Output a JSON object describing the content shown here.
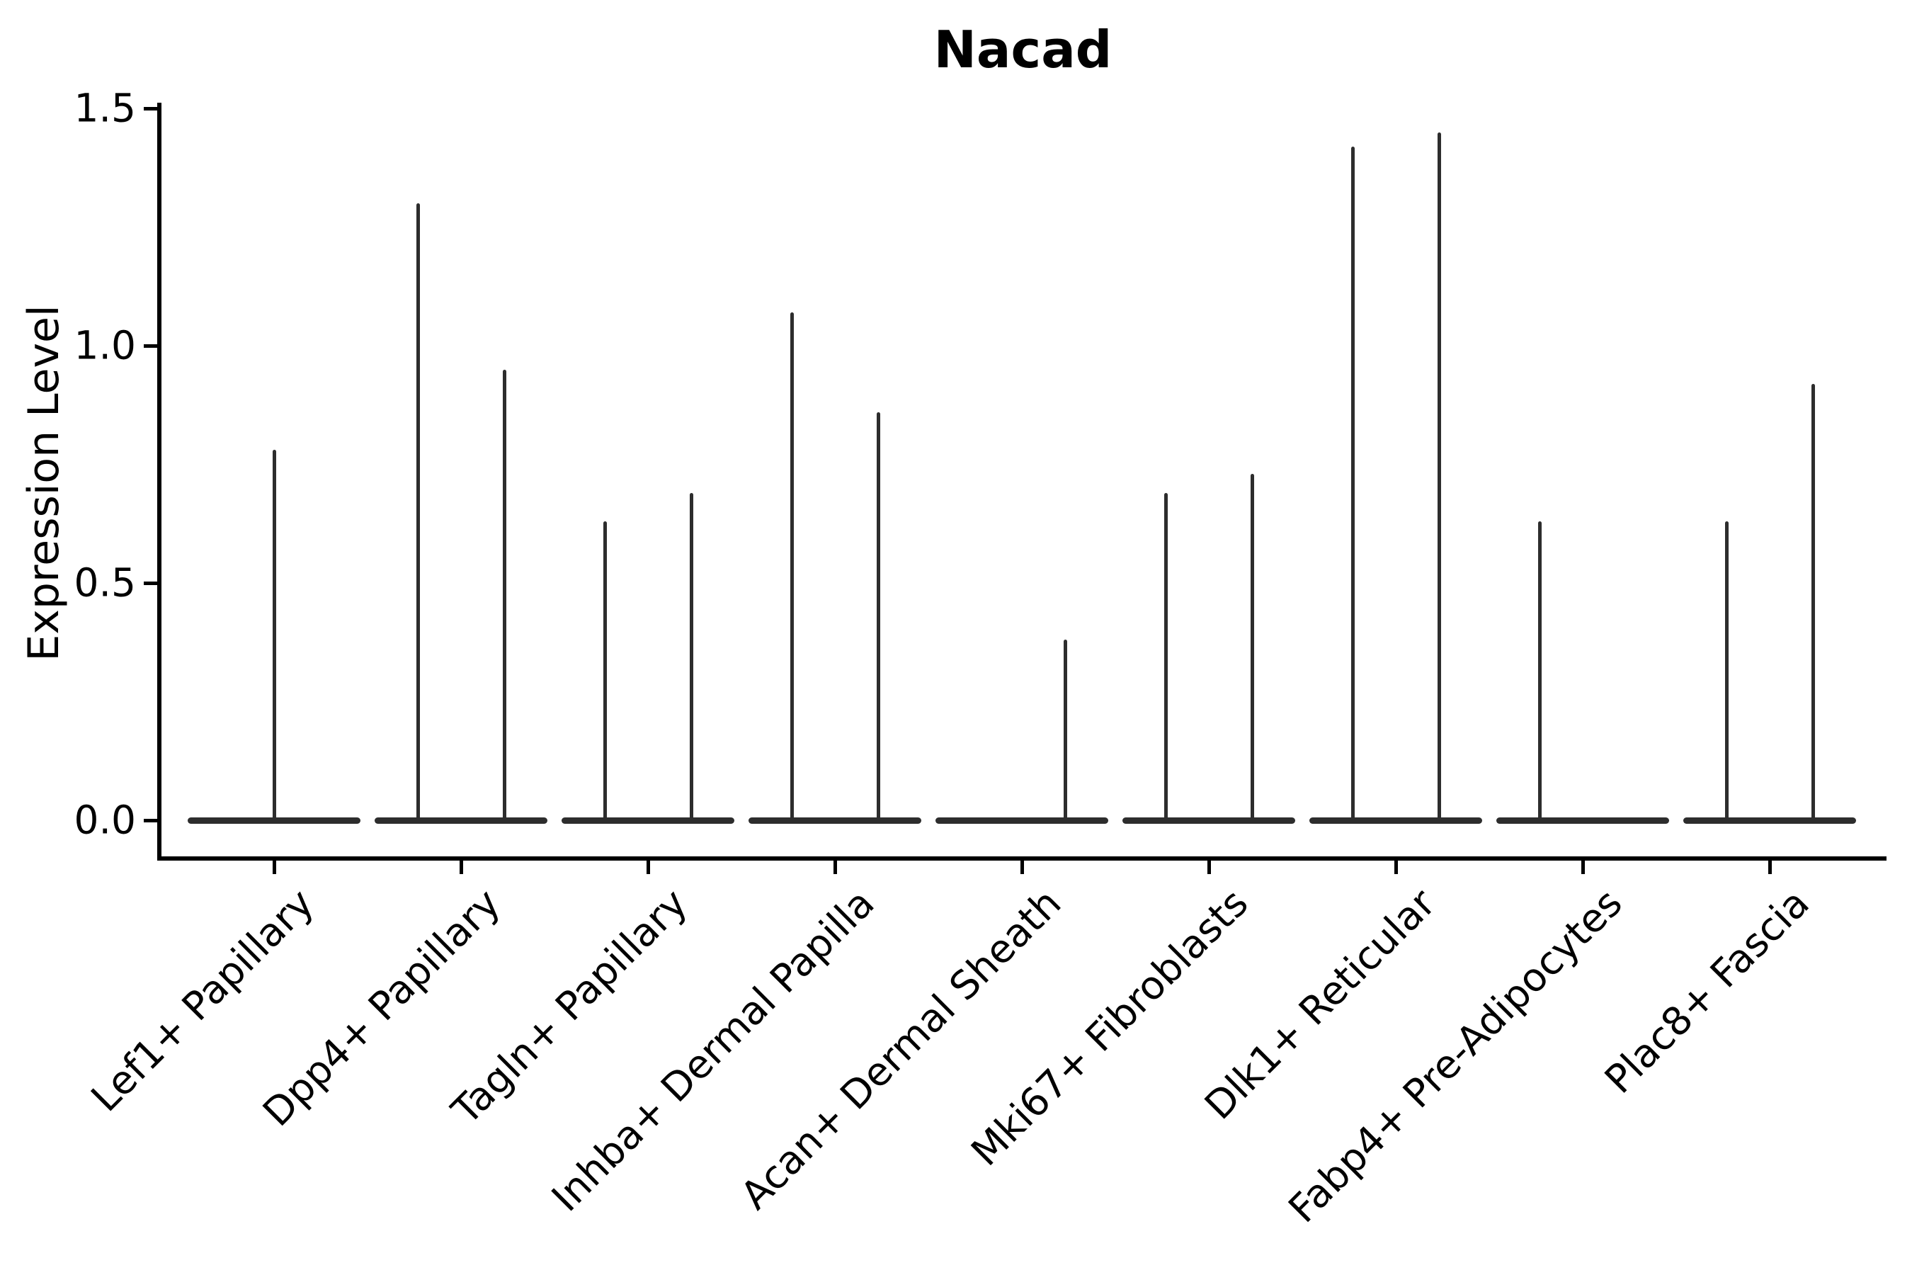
{
  "figure": {
    "title": "Nacad",
    "y_axis": {
      "label": "Expression Level",
      "tick_labels": [
        "0.0",
        "0.5",
        "1.0",
        "1.5"
      ]
    },
    "x_axis": {
      "tick_labels": [
        "Lef1+ Papillary",
        "Dpp4+ Papillary",
        "Tagln+ Papillary",
        "Inhba+ Dermal Papilla",
        "Acan+ Dermal Sheath",
        "Mki67+ Fibroblasts",
        "Dlk1+ Reticular",
        "Fabp4+ Pre-Adipocytes",
        "Plac8+ Fascia"
      ]
    }
  },
  "chart_data": {
    "type": "violin",
    "title": "Nacad",
    "xlabel": "",
    "ylabel": "Expression Level",
    "ylim": [
      -0.08,
      1.5
    ],
    "yticks": [
      0.0,
      0.5,
      1.0,
      1.5
    ],
    "grid": false,
    "legend": "none",
    "violin_color": "#2d2d2d",
    "baseline_value": 0.0,
    "description": "Violin plot of Nacad expression per fibroblast cluster; each violin is flat at 0 with a thin density spike reaching the maximum expression value. Most clusters contain two side-by-side violins.",
    "categories": [
      "Lef1+ Papillary",
      "Dpp4+ Papillary",
      "Tagln+ Papillary",
      "Inhba+ Dermal Papilla",
      "Acan+ Dermal Sheath",
      "Mki67+ Fibroblasts",
      "Dlk1+ Reticular",
      "Fabp4+ Pre-Adipocytes",
      "Plac8+ Fascia"
    ],
    "groups": [
      {
        "category": "Lef1+ Papillary",
        "spikes": [
          {
            "position": "center",
            "peak": 0.78
          }
        ]
      },
      {
        "category": "Dpp4+ Papillary",
        "spikes": [
          {
            "position": "left",
            "peak": 1.3
          },
          {
            "position": "right",
            "peak": 0.95
          }
        ]
      },
      {
        "category": "Tagln+ Papillary",
        "spikes": [
          {
            "position": "left",
            "peak": 0.63
          },
          {
            "position": "right",
            "peak": 0.69
          }
        ]
      },
      {
        "category": "Inhba+ Dermal Papilla",
        "spikes": [
          {
            "position": "left",
            "peak": 1.07
          },
          {
            "position": "right",
            "peak": 0.86
          }
        ]
      },
      {
        "category": "Acan+ Dermal Sheath",
        "spikes": [
          {
            "position": "left",
            "peak": 0.0
          },
          {
            "position": "right",
            "peak": 0.38
          }
        ]
      },
      {
        "category": "Mki67+ Fibroblasts",
        "spikes": [
          {
            "position": "left",
            "peak": 0.69
          },
          {
            "position": "right",
            "peak": 0.73
          }
        ]
      },
      {
        "category": "Dlk1+ Reticular",
        "spikes": [
          {
            "position": "left",
            "peak": 1.42
          },
          {
            "position": "right",
            "peak": 1.45
          }
        ]
      },
      {
        "category": "Fabp4+ Pre-Adipocytes",
        "spikes": [
          {
            "position": "left",
            "peak": 0.63
          },
          {
            "position": "right",
            "peak": 0.0
          }
        ]
      },
      {
        "category": "Plac8+ Fascia",
        "spikes": [
          {
            "position": "left",
            "peak": 0.63
          },
          {
            "position": "right",
            "peak": 0.92
          }
        ]
      }
    ]
  }
}
